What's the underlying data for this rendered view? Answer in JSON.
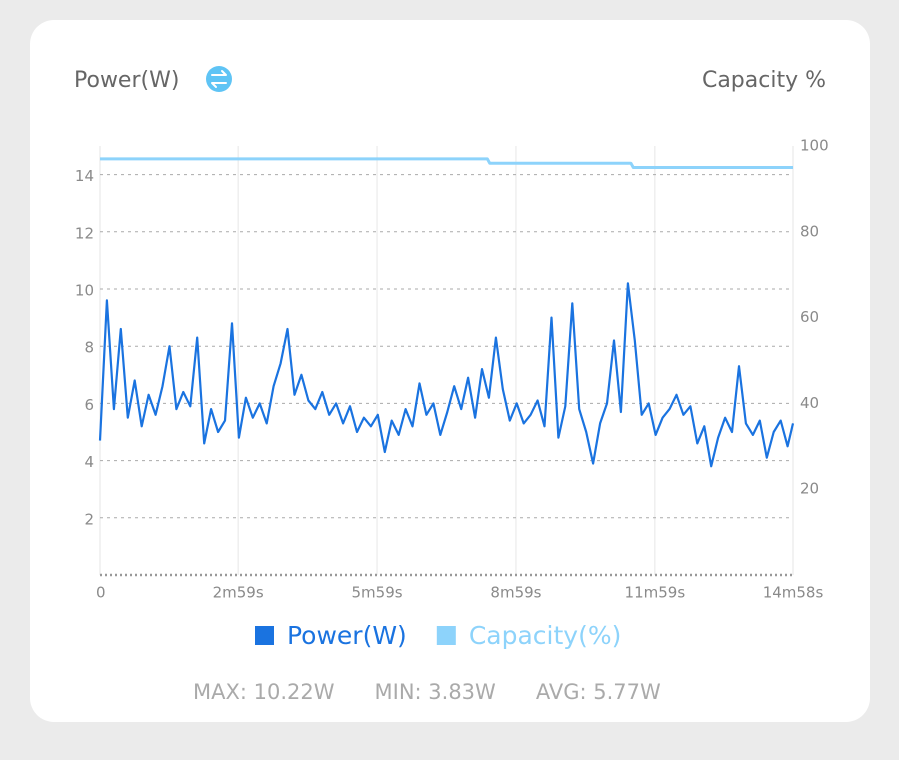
{
  "chart_data": {
    "type": "line",
    "left_title": "Power(W)",
    "right_title": "Capacity %",
    "xlim": [
      0,
      898
    ],
    "xticks": [
      0,
      {
        "value": 179,
        "label": "2m59s"
      },
      {
        "value": 359,
        "label": "5m59s"
      },
      {
        "value": 539,
        "label": "8m59s"
      },
      {
        "value": 719,
        "label": "11m59s"
      },
      {
        "value": 898,
        "label": "14m58s"
      }
    ],
    "ylim": [
      0,
      15
    ],
    "yticks": [
      2,
      4,
      6,
      8,
      10,
      12,
      14
    ],
    "y2lim": [
      0,
      100
    ],
    "y2ticks": [
      20,
      40,
      60,
      80,
      100
    ],
    "grid": true,
    "legend": "bottom",
    "series": [
      {
        "name": "Power(W)",
        "color": "#1a73e0",
        "x": [
          0,
          9,
          18,
          27,
          36,
          45,
          54,
          63,
          72,
          81,
          90,
          99,
          108,
          117,
          126,
          135,
          144,
          153,
          162,
          171,
          180,
          189,
          198,
          207,
          216,
          225,
          234,
          243,
          252,
          261,
          270,
          279,
          288,
          297,
          306,
          315,
          324,
          333,
          342,
          351,
          360,
          369,
          378,
          387,
          396,
          405,
          414,
          423,
          432,
          441,
          450,
          459,
          468,
          477,
          486,
          495,
          504,
          513,
          522,
          531,
          540,
          549,
          558,
          567,
          576,
          585,
          594,
          603,
          612,
          621,
          630,
          639,
          648,
          657,
          666,
          675,
          684,
          693,
          702,
          711,
          720,
          729,
          738,
          747,
          756,
          765,
          774,
          783,
          792,
          801,
          810,
          819,
          828,
          837,
          846,
          855,
          864,
          873,
          882,
          891,
          898
        ],
        "values": [
          4.7,
          9.6,
          5.8,
          8.6,
          5.5,
          6.8,
          5.2,
          6.3,
          5.6,
          6.6,
          8.0,
          5.8,
          6.4,
          5.9,
          8.3,
          4.6,
          5.8,
          5.0,
          5.4,
          8.8,
          4.8,
          6.2,
          5.5,
          6.0,
          5.3,
          6.6,
          7.4,
          8.6,
          6.3,
          7.0,
          6.1,
          5.8,
          6.4,
          5.6,
          6.0,
          5.3,
          5.9,
          5.0,
          5.5,
          5.2,
          5.6,
          4.3,
          5.4,
          4.9,
          5.8,
          5.2,
          6.7,
          5.6,
          6.0,
          4.9,
          5.7,
          6.6,
          5.8,
          6.9,
          5.5,
          7.2,
          6.2,
          8.3,
          6.5,
          5.4,
          6.0,
          5.3,
          5.6,
          6.1,
          5.2,
          9.0,
          4.8,
          5.9,
          9.5,
          5.8,
          5.0,
          3.9,
          5.3,
          6.0,
          8.2,
          5.7,
          10.2,
          8.2,
          5.6,
          6.0,
          4.9,
          5.5,
          5.8,
          6.3,
          5.6,
          5.9,
          4.6,
          5.2,
          3.8,
          4.8,
          5.5,
          5.0,
          7.3,
          5.3,
          4.9,
          5.4,
          4.1,
          5.0,
          5.4,
          4.5,
          5.3
        ]
      },
      {
        "name": "Capacity(%)",
        "color": "#8dd3fb",
        "axis": "y2",
        "x": [
          0,
          502,
          505,
          688,
          691,
          898
        ],
        "values": [
          97,
          97,
          96,
          96,
          95,
          95
        ]
      }
    ],
    "stats": [
      "MAX: 10.22W",
      "MIN: 3.83W",
      "AVG: 5.77W"
    ]
  }
}
